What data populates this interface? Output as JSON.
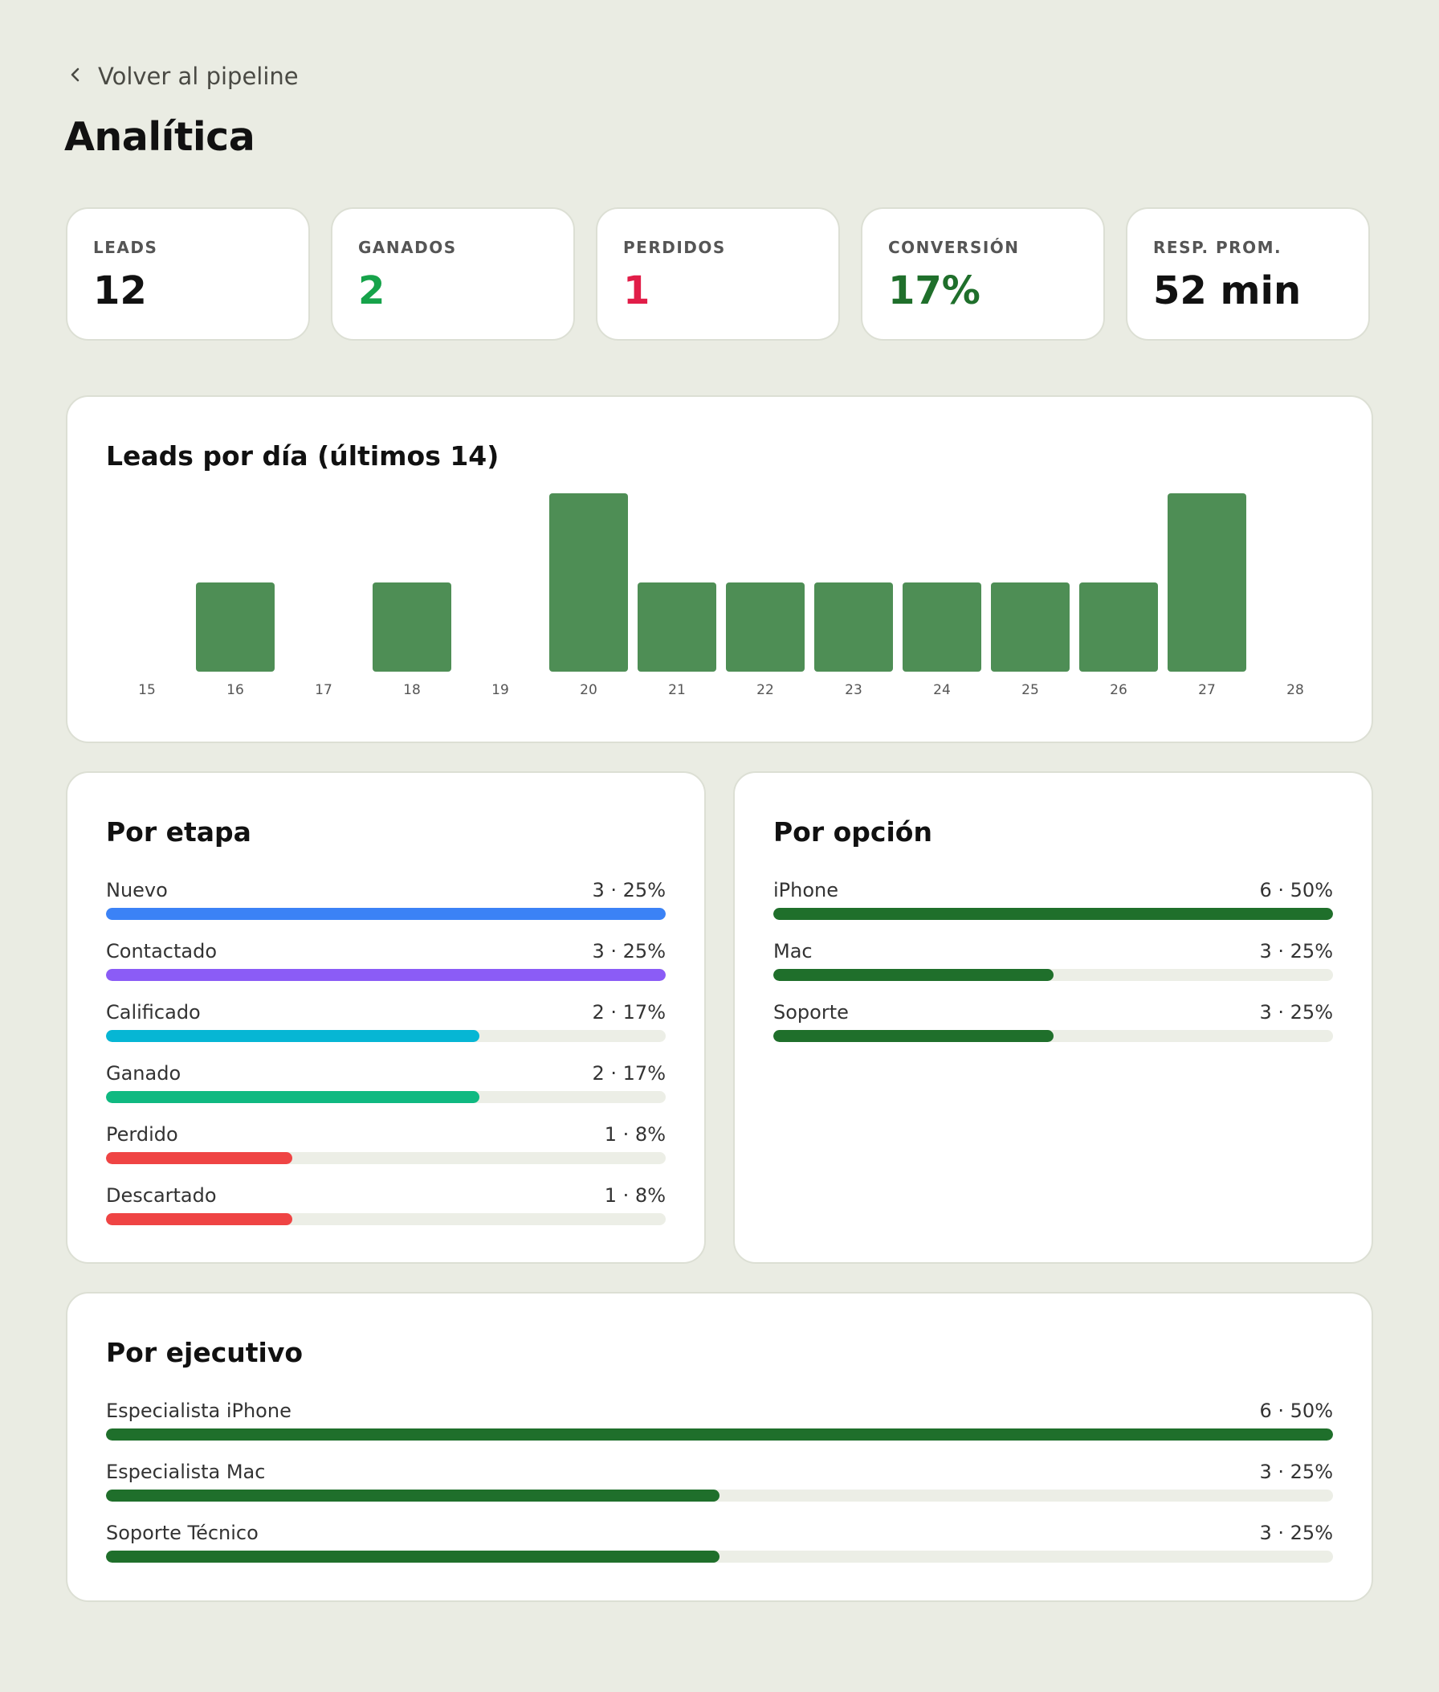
{
  "nav": {
    "back_label": "Volver al pipeline"
  },
  "page": {
    "title": "Analítica"
  },
  "kpis": [
    {
      "label": "LEADS",
      "value": "12",
      "color": "#111111"
    },
    {
      "label": "GANADOS",
      "value": "2",
      "color": "#16a34a"
    },
    {
      "label": "PERDIDOS",
      "value": "1",
      "color": "#e11d48"
    },
    {
      "label": "CONVERSIÓN",
      "value": "17%",
      "color": "#1f6f2b"
    },
    {
      "label": "RESP. PROM.",
      "value": "52 min",
      "color": "#111111"
    }
  ],
  "leads_chart": {
    "title": "Leads por día (últimos 14)"
  },
  "chart_data": {
    "type": "bar",
    "title": "Leads por día (últimos 14)",
    "categories": [
      "15",
      "16",
      "17",
      "18",
      "19",
      "20",
      "21",
      "22",
      "23",
      "24",
      "25",
      "26",
      "27",
      "28"
    ],
    "values": [
      0,
      1,
      0,
      1,
      0,
      2,
      1,
      1,
      1,
      1,
      1,
      1,
      2,
      0
    ],
    "ylim": [
      0,
      2
    ],
    "bar_color": "#4e8e55",
    "grid": false
  },
  "by_stage": {
    "title": "Por etapa",
    "items": [
      {
        "label": "Nuevo",
        "value": "3 · 25%",
        "share": 1.0,
        "color": "#3b82f6"
      },
      {
        "label": "Contactado",
        "value": "3 · 25%",
        "share": 1.0,
        "color": "#8b5cf6"
      },
      {
        "label": "Calificado",
        "value": "2 · 17%",
        "share": 0.667,
        "color": "#06b6d4"
      },
      {
        "label": "Ganado",
        "value": "2 · 17%",
        "share": 0.667,
        "color": "#10b981"
      },
      {
        "label": "Perdido",
        "value": "1 · 8%",
        "share": 0.333,
        "color": "#ef4444"
      },
      {
        "label": "Descartado",
        "value": "1 · 8%",
        "share": 0.333,
        "color": "#ef4444"
      }
    ]
  },
  "by_option": {
    "title": "Por opción",
    "items": [
      {
        "label": "iPhone",
        "value": "6 · 50%",
        "share": 1.0,
        "color": "#1f6f2b"
      },
      {
        "label": "Mac",
        "value": "3 · 25%",
        "share": 0.5,
        "color": "#1f6f2b"
      },
      {
        "label": "Soporte",
        "value": "3 · 25%",
        "share": 0.5,
        "color": "#1f6f2b"
      }
    ]
  },
  "by_executive": {
    "title": "Por ejecutivo",
    "items": [
      {
        "label": "Especialista iPhone",
        "value": "6 · 50%",
        "share": 1.0,
        "color": "#1f6f2b"
      },
      {
        "label": "Especialista Mac",
        "value": "3 · 25%",
        "share": 0.5,
        "color": "#1f6f2b"
      },
      {
        "label": "Soporte Técnico",
        "value": "3 · 25%",
        "share": 0.5,
        "color": "#1f6f2b"
      }
    ]
  }
}
